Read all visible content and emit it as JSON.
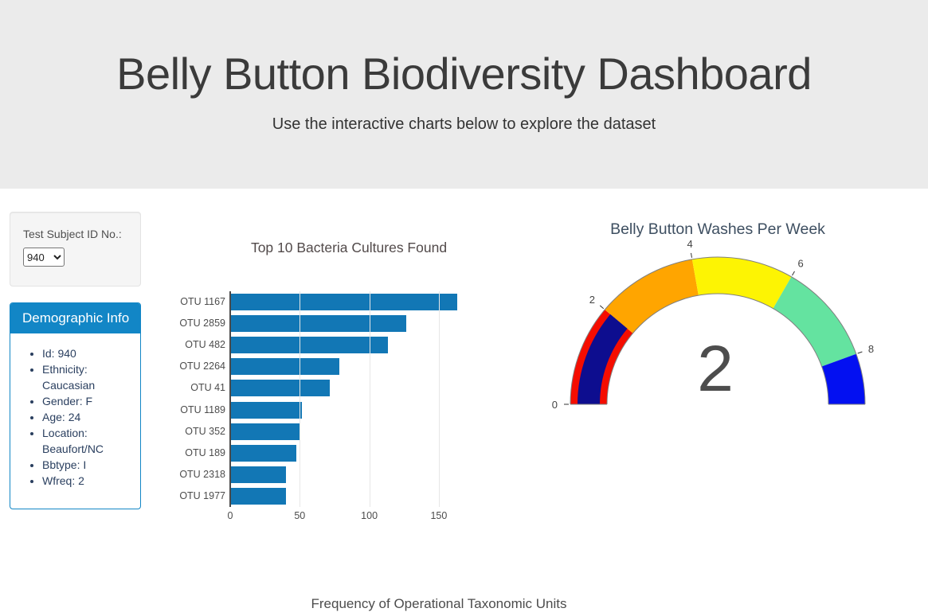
{
  "header": {
    "title": "Belly Button Biodiversity Dashboard",
    "subtitle": "Use the interactive charts below to explore the dataset"
  },
  "sidebar": {
    "selector": {
      "label": "Test Subject ID No.:",
      "selected": "940",
      "options": [
        "940"
      ]
    },
    "demographics": {
      "title": "Demographic Info",
      "items": [
        "Id: 940",
        "Ethnicity: Caucasian",
        "Gender: F",
        "Age: 24",
        "Location: Beaufort/NC",
        "Bbtype: I",
        "Wfreq: 2"
      ]
    }
  },
  "chart_data": [
    {
      "type": "bar",
      "orientation": "horizontal",
      "title": "Top 10 Bacteria Cultures Found",
      "categories": [
        "OTU 1167",
        "OTU 2859",
        "OTU 482",
        "OTU 2264",
        "OTU 41",
        "OTU 1189",
        "OTU 352",
        "OTU 189",
        "OTU 2318",
        "OTU 1977"
      ],
      "values": [
        163,
        126,
        113,
        78,
        71,
        51,
        50,
        47,
        40,
        40
      ],
      "xlabel": "",
      "ylabel": "",
      "xticks": [
        0,
        50,
        100,
        150
      ],
      "xlim": [
        0,
        172
      ],
      "grid": true,
      "bar_color": "#1277b5"
    },
    {
      "type": "gauge",
      "title": "Belly Button Washes Per Week",
      "value": 2,
      "range": [
        0,
        9
      ],
      "ticks": [
        0,
        2,
        4,
        6,
        8
      ],
      "bar_color": "#0d0d8f",
      "steps": [
        {
          "range": [
            0,
            2
          ],
          "color": "#f50d00"
        },
        {
          "range": [
            2,
            4
          ],
          "color": "#ffa500"
        },
        {
          "range": [
            4,
            6
          ],
          "color": "#fdf403"
        },
        {
          "range": [
            6,
            8
          ],
          "color": "#64e3a0"
        },
        {
          "range": [
            8,
            9
          ],
          "color": "#0310f1"
        }
      ]
    },
    {
      "type": "bubble",
      "title": "Frequency of Operational Taxonomic Units"
    }
  ],
  "theme": {
    "header_bg": "#ebebeb",
    "panel_blue": "#1286c6",
    "bar_blue": "#1277b5"
  }
}
